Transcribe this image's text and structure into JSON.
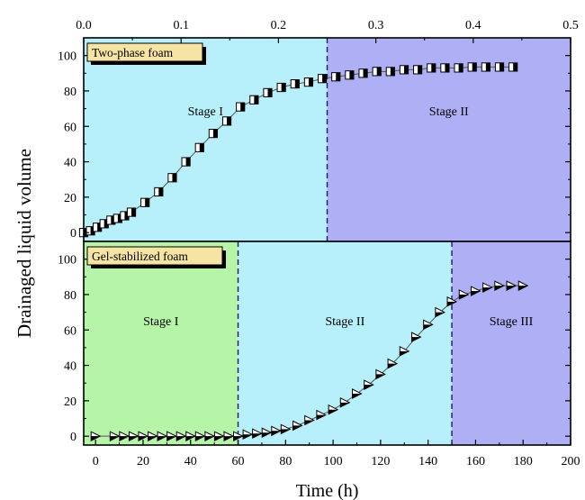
{
  "chart_data": [
    {
      "type": "line",
      "panel": "top",
      "legend": "Two-phase foam",
      "xlim": [
        0,
        0.5
      ],
      "ylim": [
        -5,
        110
      ],
      "x_ticks": [
        "0.0",
        "0.1",
        "0.2",
        "0.3",
        "0.4",
        "0.5"
      ],
      "x_tick_values": [
        0,
        0.1,
        0.2,
        0.3,
        0.4,
        0.5
      ],
      "y_ticks": [
        "0",
        "20",
        "40",
        "60",
        "80",
        "100"
      ],
      "y_tick_values": [
        0,
        20,
        40,
        60,
        80,
        100
      ],
      "stage_boundaries": [
        0.25
      ],
      "stages": [
        {
          "label": "Stage I",
          "from": 0,
          "to": 0.25,
          "color": "#b7effa"
        },
        {
          "label": "Stage II",
          "from": 0.25,
          "to": 0.5,
          "color": "#afaff5"
        }
      ],
      "marker": "half-filled-square",
      "series": [
        {
          "name": "Two-phase foam",
          "x": [
            0,
            0.007,
            0.014,
            0.021,
            0.028,
            0.035,
            0.042,
            0.049,
            0.063,
            0.077,
            0.091,
            0.105,
            0.119,
            0.133,
            0.147,
            0.161,
            0.175,
            0.189,
            0.203,
            0.217,
            0.231,
            0.245,
            0.259,
            0.273,
            0.287,
            0.301,
            0.315,
            0.329,
            0.343,
            0.357,
            0.371,
            0.385,
            0.399,
            0.413,
            0.427,
            0.441
          ],
          "y": [
            0,
            1,
            3,
            5,
            7,
            8,
            9.5,
            11.5,
            17,
            23,
            31,
            40,
            48,
            56,
            63,
            71,
            75,
            79,
            82,
            84,
            85,
            87,
            88,
            89,
            90,
            91,
            91,
            92,
            92,
            93,
            93,
            93,
            93.5,
            93.5,
            93.5,
            93.5
          ]
        }
      ]
    },
    {
      "type": "line",
      "panel": "bottom",
      "legend": "Gel-stabilized foam",
      "xlim": [
        -5,
        200
      ],
      "ylim": [
        -5,
        110
      ],
      "xlabel": "Time (h)",
      "x_ticks": [
        "0",
        "20",
        "40",
        "60",
        "80",
        "100",
        "120",
        "140",
        "160",
        "180",
        "200"
      ],
      "x_tick_values": [
        0,
        20,
        40,
        60,
        80,
        100,
        120,
        140,
        160,
        180,
        200
      ],
      "y_ticks": [
        "0",
        "20",
        "40",
        "60",
        "80",
        "100"
      ],
      "y_tick_values": [
        0,
        20,
        40,
        60,
        80,
        100
      ],
      "stage_boundaries": [
        60,
        150
      ],
      "stages": [
        {
          "label": "Stage I",
          "from": -5,
          "to": 60,
          "color": "#b6f4a8"
        },
        {
          "label": "Stage II",
          "from": 60,
          "to": 150,
          "color": "#b7effa"
        },
        {
          "label": "Stage III",
          "from": 150,
          "to": 200,
          "color": "#afaff5"
        }
      ],
      "marker": "half-filled-triangle-right",
      "series": [
        {
          "name": "Gel-stabilized foam",
          "x": [
            0,
            8,
            12,
            16,
            20,
            24,
            28,
            32,
            36,
            40,
            44,
            48,
            52,
            56,
            60,
            64,
            68,
            72,
            76,
            80,
            85,
            90,
            95,
            100,
            105,
            110,
            115,
            120,
            125,
            130,
            135,
            140,
            145,
            150,
            155,
            160,
            165,
            170,
            175,
            180
          ],
          "y": [
            0,
            0,
            0,
            0,
            0,
            0,
            0,
            0,
            0,
            0,
            0,
            0,
            0,
            0,
            0,
            1,
            1.5,
            2,
            3,
            4,
            6,
            9,
            12,
            15,
            19,
            24,
            29,
            35,
            41,
            48,
            56,
            63,
            70,
            76,
            80,
            82,
            84,
            85,
            85,
            85
          ]
        }
      ]
    }
  ],
  "ylabel": "Drainaged liquid volume",
  "colors": {
    "stage_cyan": "#b7effa",
    "stage_purple": "#afaff5",
    "stage_green": "#b6f4a8",
    "legend_fill": "#f5e4a3"
  }
}
